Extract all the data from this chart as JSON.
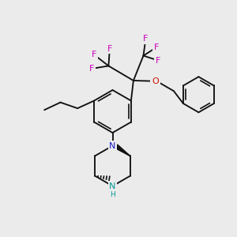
{
  "bg_color": "#ebebeb",
  "bond_color": "#111111",
  "N_color": "#1a1acc",
  "NH_color": "#009999",
  "O_color": "#cc1100",
  "F_color": "#cc00bb",
  "lw": 1.35,
  "fs": 8.0,
  "figsize": [
    3.0,
    3.0
  ],
  "dpi": 100,
  "xlim": [
    0,
    10
  ],
  "ylim": [
    0,
    10
  ]
}
